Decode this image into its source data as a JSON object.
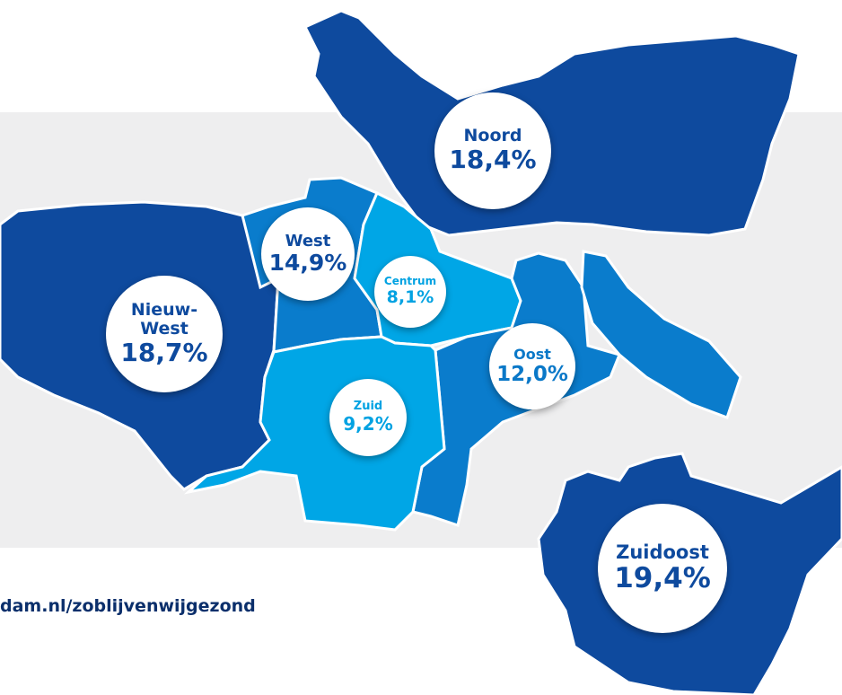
{
  "districts": [
    {
      "name": "Noord",
      "value": "18,4%"
    },
    {
      "name": "West",
      "value": "14,9%"
    },
    {
      "name": "Centrum",
      "value": "8,1%"
    },
    {
      "name": "Nieuw-West",
      "value": "18,7%"
    },
    {
      "name": "Oost",
      "value": "12,0%"
    },
    {
      "name": "Zuid",
      "value": "9,2%"
    },
    {
      "name": "Zuidoost",
      "value": "19,4%"
    }
  ],
  "footer": {
    "url": "dam.nl/zoblijvenwijgezond"
  }
}
